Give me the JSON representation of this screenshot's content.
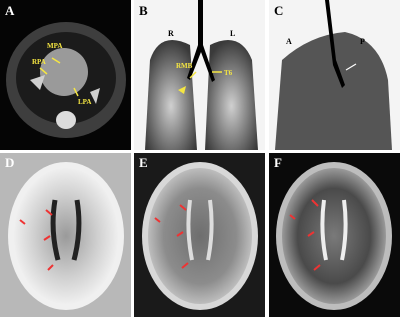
{
  "panels": [
    {
      "letter": "A",
      "labels": [
        "MPA",
        "RPA",
        "LPA"
      ]
    },
    {
      "letter": "B",
      "labels": [
        "R",
        "L",
        "RMB",
        "T6"
      ]
    },
    {
      "letter": "C",
      "labels": [
        "A",
        "P"
      ]
    },
    {
      "letter": "D",
      "labels": []
    },
    {
      "letter": "E",
      "labels": []
    },
    {
      "letter": "F",
      "labels": []
    }
  ]
}
